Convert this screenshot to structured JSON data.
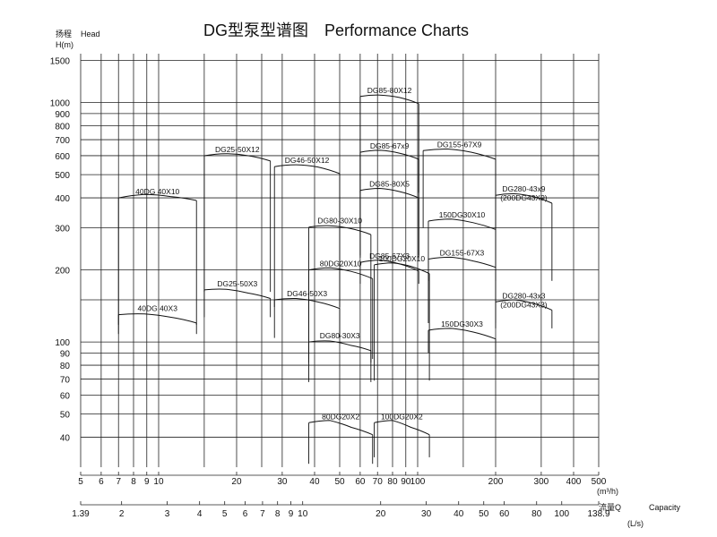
{
  "chart_data": {
    "type": "line",
    "title": "DG型泵型谱图　Performance Charts",
    "y_axis": {
      "label_cn": "扬程",
      "label_en": "Head",
      "unit": "H(m)",
      "scale": "log",
      "ylim": [
        30,
        1600
      ],
      "ticks": [
        "1500",
        "1000",
        "900",
        "800",
        "700",
        "600",
        "500",
        "400",
        "300",
        "200",
        "100",
        "90",
        "80",
        "70",
        "60",
        "50",
        "40"
      ],
      "tick_values": [
        1500,
        1000,
        900,
        800,
        700,
        600,
        500,
        400,
        300,
        200,
        100,
        90,
        80,
        70,
        60,
        50,
        40
      ]
    },
    "x_axis_m3h": {
      "unit": "(m³/h)",
      "scale": "log",
      "xlim": [
        5,
        500
      ],
      "ticks": [
        "5",
        "6",
        "7",
        "8",
        "9",
        "10",
        "20",
        "30",
        "40",
        "50",
        "60",
        "70",
        "80",
        "90",
        "100",
        "200",
        "300",
        "400",
        "500"
      ],
      "tick_values": [
        5,
        6,
        7,
        8,
        9,
        10,
        20,
        30,
        40,
        50,
        60,
        70,
        80,
        90,
        100,
        200,
        300,
        400,
        500
      ]
    },
    "x_axis_ls": {
      "label_cn": "流量Q",
      "label_en": "Capacity",
      "unit": "(L/s)",
      "scale": "log",
      "xlim": [
        1.39,
        138.9
      ],
      "ticks": [
        "1.39",
        "2",
        "3",
        "4",
        "5",
        "6",
        "7",
        "8",
        "9",
        "10",
        "20",
        "30",
        "40",
        "50",
        "60",
        "80",
        "100",
        "138.9"
      ],
      "tick_values": [
        1.39,
        2,
        3,
        4,
        5,
        6,
        7,
        8,
        9,
        10,
        20,
        30,
        40,
        50,
        60,
        80,
        100,
        138.9
      ]
    },
    "x_gridlines_m3h": [
      5,
      6,
      7,
      8,
      9,
      10,
      15,
      20,
      25,
      30,
      40,
      50,
      60,
      70,
      80,
      90,
      100,
      150,
      200,
      300,
      400,
      500
    ],
    "y_gridlines_m": [
      40,
      50,
      60,
      70,
      80,
      90,
      100,
      150,
      200,
      300,
      400,
      500,
      600,
      700,
      800,
      900,
      1000,
      1500
    ],
    "grid": true,
    "zones": [
      {
        "label": "40DG 40X10",
        "q": [
          7,
          14
        ],
        "h_left": [
          400,
          413,
          405,
          390
        ],
        "h_bottom": 118
      },
      {
        "label": "40DG 40X3",
        "q": [
          7,
          14
        ],
        "h_left": [
          130,
          131,
          127,
          120
        ],
        "h_bottom": 108
      },
      {
        "label": "DG25-50X12",
        "q": [
          15,
          27
        ],
        "h_left": [
          600,
          612,
          600,
          570
        ],
        "h_bottom": 162
      },
      {
        "label": "DG25-50X3",
        "q": [
          15,
          27
        ],
        "h_left": [
          165,
          166,
          160,
          152
        ],
        "h_bottom": 127
      },
      {
        "label": "DG46-50X12",
        "q": [
          28,
          50
        ],
        "h_left": [
          540,
          550,
          538,
          505
        ],
        "h_bottom": 140
      },
      {
        "label": "DG46-50X3",
        "q": [
          28,
          50
        ],
        "h_left": [
          150,
          152,
          147,
          138
        ],
        "h_bottom": 104
      },
      {
        "label": "DG80-30X10",
        "q": [
          38,
          66
        ],
        "h_left": [
          302,
          306,
          298,
          281
        ],
        "h_bottom": 68
      },
      {
        "label": "DG80-30X3",
        "q": [
          38,
          66
        ],
        "h_left": [
          100,
          101,
          97,
          92
        ],
        "h_bottom": 82
      },
      {
        "label": "80DG20X10",
        "q": [
          38,
          67
        ],
        "h_left": [
          200,
          204,
          197,
          184
        ],
        "h_bottom": 85
      },
      {
        "label": "80DG20X2",
        "q": [
          38,
          67
        ],
        "h_left": [
          46,
          47,
          44,
          41
        ],
        "h_bottom": 31
      },
      {
        "label": "DG85-80X12",
        "q": [
          60,
          101
        ],
        "h_left": [
          1060,
          1075,
          1050,
          990
        ],
        "h_bottom": 420
      },
      {
        "label": "DG85-67x9",
        "q": [
          60,
          101
        ],
        "h_left": [
          620,
          632,
          615,
          580
        ],
        "h_bottom": 230
      },
      {
        "label": "DG85-80X5",
        "q": [
          60,
          101
        ],
        "h_left": [
          430,
          438,
          425,
          400
        ],
        "h_bottom": 225
      },
      {
        "label": "DG85-67X3",
        "q": [
          60,
          101
        ],
        "h_left": [
          215,
          220,
          212,
          198
        ],
        "h_bottom": 175
      },
      {
        "label": "100DG20X10",
        "q": [
          68,
          111
        ],
        "h_left": [
          210,
          214,
          207,
          193
        ],
        "h_bottom": 69
      },
      {
        "label": "100DG20X2",
        "q": [
          68,
          111
        ],
        "h_left": [
          46,
          47,
          44,
          41
        ],
        "h_bottom": 33
      },
      {
        "label": "DG155-67X9",
        "q": [
          105,
          200
        ],
        "h_left": [
          630,
          640,
          620,
          580
        ],
        "h_bottom": 300
      },
      {
        "label": "150DG30X10",
        "q": [
          110,
          200
        ],
        "h_left": [
          320,
          326,
          315,
          295
        ],
        "h_bottom": 180
      },
      {
        "label": "DG155-67X3",
        "q": [
          110,
          200
        ],
        "h_left": [
          222,
          226,
          218,
          205
        ],
        "h_bottom": 120
      },
      {
        "label": "150DG30X3",
        "q": [
          110,
          200
        ],
        "h_left": [
          112,
          114,
          110,
          103
        ],
        "h_bottom": 90
      },
      {
        "label": "DG280-43x9",
        "sub_label": "(200DG43X9)",
        "q": [
          200,
          330
        ],
        "h_left": [
          410,
          416,
          405,
          380
        ],
        "h_bottom": 180
      },
      {
        "label": "DG280-43x3",
        "sub_label": "(200DG43X3)",
        "q": [
          200,
          330
        ],
        "h_left": [
          147,
          150,
          145,
          136
        ],
        "h_bottom": 114
      }
    ]
  }
}
